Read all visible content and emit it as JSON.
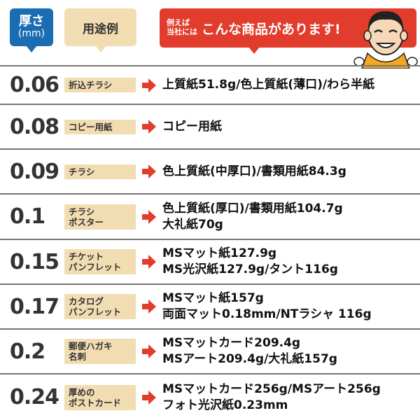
{
  "header": {
    "thickness_label": "厚さ",
    "thickness_unit": "(mm)",
    "use_label": "用途例",
    "promo_small_1": "例えば",
    "promo_small_2": "当社には",
    "promo_large": "こんな商品があります!"
  },
  "colors": {
    "blue": "#1b6db3",
    "beige": "#f2ddb3",
    "red": "#e23c2c"
  },
  "rows": [
    {
      "thickness": "0.06",
      "use": [
        "折込チラシ"
      ],
      "products": [
        "上質紙51.8g/色上質紙(薄口)/わら半紙"
      ]
    },
    {
      "thickness": "0.08",
      "use": [
        "コピー用紙"
      ],
      "products": [
        "コピー用紙"
      ]
    },
    {
      "thickness": "0.09",
      "use": [
        "チラシ"
      ],
      "products": [
        "色上質紙(中厚口)/書類用紙84.3g"
      ]
    },
    {
      "thickness": "0.1",
      "use": [
        "チラシ",
        "ポスター"
      ],
      "products": [
        "色上質紙(厚口)/書類用紙104.7g",
        "大礼紙70g"
      ]
    },
    {
      "thickness": "0.15",
      "use": [
        "チケット",
        "パンフレット"
      ],
      "products": [
        "MSマット紙127.9g",
        "MS光沢紙127.9g/タント116g"
      ]
    },
    {
      "thickness": "0.17",
      "use": [
        "カタログ",
        "パンフレット"
      ],
      "products": [
        "MSマット紙157g",
        "両面マット0.18mm/NTラシャ 116g"
      ]
    },
    {
      "thickness": "0.2",
      "use": [
        "郵便ハガキ",
        "名刺"
      ],
      "products": [
        "MSマットカード209.4g",
        "MSアート209.4g/大礼紙157g"
      ]
    },
    {
      "thickness": "0.24",
      "use": [
        "厚めの",
        "ポストカード"
      ],
      "products": [
        "MSマットカード256g/MSアート256g",
        "フォト光沢紙0.23mm"
      ]
    }
  ]
}
